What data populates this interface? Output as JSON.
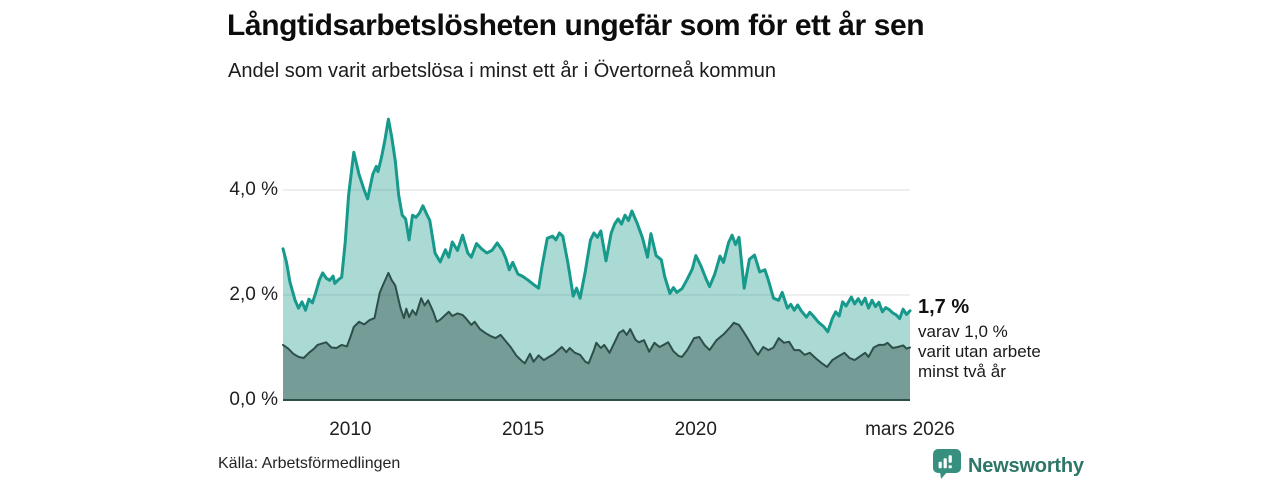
{
  "header": {
    "title": "Långtidsarbetslösheten ungefär som för ett år sen",
    "subtitle": "Andel som varit arbetslösa i minst ett år i Övertorneå kommun"
  },
  "footer": {
    "source": "Källa: Arbetsförmedlingen",
    "brand": "Newsworthy",
    "logo_icon": "bar-chart-speech-bubble",
    "brand_color": "#2d7668",
    "logo_bg_color": "#37907f"
  },
  "chart_data": {
    "type": "area",
    "title": "Långtidsarbetslösheten ungefär som för ett år sen",
    "subtitle": "Andel som varit arbetslösa i minst ett år i Övertorneå kommun",
    "unit": "%",
    "grid": "on",
    "legend_position": "annotation-right",
    "x_domain": [
      2008.05,
      2026.2
    ],
    "ylim": [
      0,
      5.6
    ],
    "colors": {
      "grid": "#dcdcdc",
      "axis": "#2e4f49"
    },
    "y_ticks": [
      {
        "value": 0,
        "label": "0,0 %"
      },
      {
        "value": 2,
        "label": "2,0 %"
      },
      {
        "value": 4,
        "label": "4,0 %"
      }
    ],
    "x_ticks": [
      {
        "value": 2010,
        "label": "2010"
      },
      {
        "value": 2015,
        "label": "2015"
      },
      {
        "value": 2020,
        "label": "2020"
      },
      {
        "value": 2026.2,
        "label": "mars 2026"
      }
    ],
    "annotation": {
      "value_label": "1,7 %",
      "detail_lines": [
        "varav 1,0 %",
        "varit utan arbete",
        "minst två år"
      ]
    },
    "series": [
      {
        "name": "Andel arbetslösa minst ett år",
        "line_color": "#17998b",
        "fill": "rgba(23,153,139,0.36)",
        "line_width": 3,
        "latest_value": 1.7,
        "points": [
          [
            2008.05,
            2.88
          ],
          [
            2008.15,
            2.62
          ],
          [
            2008.25,
            2.25
          ],
          [
            2008.4,
            1.9
          ],
          [
            2008.5,
            1.75
          ],
          [
            2008.6,
            1.87
          ],
          [
            2008.7,
            1.71
          ],
          [
            2008.8,
            1.92
          ],
          [
            2008.9,
            1.85
          ],
          [
            2009.0,
            2.05
          ],
          [
            2009.1,
            2.28
          ],
          [
            2009.2,
            2.42
          ],
          [
            2009.3,
            2.32
          ],
          [
            2009.4,
            2.28
          ],
          [
            2009.5,
            2.36
          ],
          [
            2009.55,
            2.22
          ],
          [
            2009.65,
            2.29
          ],
          [
            2009.75,
            2.34
          ],
          [
            2009.85,
            3.0
          ],
          [
            2009.95,
            3.9
          ],
          [
            2010.1,
            4.72
          ],
          [
            2010.25,
            4.3
          ],
          [
            2010.4,
            4.0
          ],
          [
            2010.5,
            3.83
          ],
          [
            2010.65,
            4.3
          ],
          [
            2010.75,
            4.45
          ],
          [
            2010.8,
            4.35
          ],
          [
            2010.9,
            4.62
          ],
          [
            2011.0,
            4.95
          ],
          [
            2011.1,
            5.35
          ],
          [
            2011.2,
            5.0
          ],
          [
            2011.3,
            4.55
          ],
          [
            2011.4,
            3.9
          ],
          [
            2011.5,
            3.52
          ],
          [
            2011.6,
            3.45
          ],
          [
            2011.7,
            3.05
          ],
          [
            2011.8,
            3.52
          ],
          [
            2011.9,
            3.48
          ],
          [
            2012.0,
            3.56
          ],
          [
            2012.1,
            3.7
          ],
          [
            2012.2,
            3.55
          ],
          [
            2012.3,
            3.42
          ],
          [
            2012.45,
            2.8
          ],
          [
            2012.6,
            2.63
          ],
          [
            2012.75,
            2.86
          ],
          [
            2012.85,
            2.72
          ],
          [
            2012.95,
            3.01
          ],
          [
            2013.1,
            2.85
          ],
          [
            2013.25,
            3.14
          ],
          [
            2013.4,
            2.8
          ],
          [
            2013.5,
            2.72
          ],
          [
            2013.65,
            2.98
          ],
          [
            2013.8,
            2.88
          ],
          [
            2013.95,
            2.8
          ],
          [
            2014.1,
            2.85
          ],
          [
            2014.25,
            2.99
          ],
          [
            2014.4,
            2.85
          ],
          [
            2014.5,
            2.7
          ],
          [
            2014.6,
            2.48
          ],
          [
            2014.7,
            2.62
          ],
          [
            2014.85,
            2.4
          ],
          [
            2015.0,
            2.35
          ],
          [
            2015.15,
            2.28
          ],
          [
            2015.3,
            2.2
          ],
          [
            2015.45,
            2.13
          ],
          [
            2015.55,
            2.55
          ],
          [
            2015.7,
            3.08
          ],
          [
            2015.85,
            3.12
          ],
          [
            2015.95,
            3.05
          ],
          [
            2016.05,
            3.18
          ],
          [
            2016.15,
            3.12
          ],
          [
            2016.3,
            2.6
          ],
          [
            2016.45,
            1.98
          ],
          [
            2016.55,
            2.13
          ],
          [
            2016.65,
            1.94
          ],
          [
            2016.8,
            2.45
          ],
          [
            2016.95,
            3.05
          ],
          [
            2017.05,
            3.18
          ],
          [
            2017.15,
            3.1
          ],
          [
            2017.25,
            3.22
          ],
          [
            2017.4,
            2.65
          ],
          [
            2017.55,
            3.18
          ],
          [
            2017.65,
            3.35
          ],
          [
            2017.75,
            3.45
          ],
          [
            2017.85,
            3.35
          ],
          [
            2017.95,
            3.52
          ],
          [
            2018.05,
            3.42
          ],
          [
            2018.15,
            3.6
          ],
          [
            2018.3,
            3.37
          ],
          [
            2018.45,
            3.1
          ],
          [
            2018.6,
            2.72
          ],
          [
            2018.7,
            3.17
          ],
          [
            2018.85,
            2.75
          ],
          [
            2019.0,
            2.67
          ],
          [
            2019.1,
            2.35
          ],
          [
            2019.25,
            2.03
          ],
          [
            2019.35,
            2.14
          ],
          [
            2019.45,
            2.05
          ],
          [
            2019.6,
            2.12
          ],
          [
            2019.75,
            2.3
          ],
          [
            2019.9,
            2.5
          ],
          [
            2020.0,
            2.75
          ],
          [
            2020.15,
            2.55
          ],
          [
            2020.3,
            2.3
          ],
          [
            2020.4,
            2.16
          ],
          [
            2020.55,
            2.4
          ],
          [
            2020.7,
            2.74
          ],
          [
            2020.8,
            2.62
          ],
          [
            2020.95,
            3.0
          ],
          [
            2021.05,
            3.14
          ],
          [
            2021.15,
            2.96
          ],
          [
            2021.25,
            3.1
          ],
          [
            2021.4,
            2.13
          ],
          [
            2021.55,
            2.68
          ],
          [
            2021.7,
            2.76
          ],
          [
            2021.85,
            2.44
          ],
          [
            2022.0,
            2.48
          ],
          [
            2022.1,
            2.28
          ],
          [
            2022.25,
            1.94
          ],
          [
            2022.4,
            1.9
          ],
          [
            2022.5,
            2.05
          ],
          [
            2022.65,
            1.75
          ],
          [
            2022.75,
            1.82
          ],
          [
            2022.85,
            1.71
          ],
          [
            2022.95,
            1.81
          ],
          [
            2023.05,
            1.7
          ],
          [
            2023.2,
            1.58
          ],
          [
            2023.3,
            1.67
          ],
          [
            2023.4,
            1.6
          ],
          [
            2023.55,
            1.48
          ],
          [
            2023.7,
            1.4
          ],
          [
            2023.82,
            1.3
          ],
          [
            2023.95,
            1.55
          ],
          [
            2024.05,
            1.68
          ],
          [
            2024.15,
            1.6
          ],
          [
            2024.25,
            1.87
          ],
          [
            2024.35,
            1.79
          ],
          [
            2024.5,
            1.96
          ],
          [
            2024.6,
            1.83
          ],
          [
            2024.7,
            1.93
          ],
          [
            2024.8,
            1.82
          ],
          [
            2024.9,
            1.94
          ],
          [
            2025.0,
            1.75
          ],
          [
            2025.1,
            1.9
          ],
          [
            2025.2,
            1.78
          ],
          [
            2025.3,
            1.86
          ],
          [
            2025.4,
            1.68
          ],
          [
            2025.5,
            1.76
          ],
          [
            2025.6,
            1.72
          ],
          [
            2025.7,
            1.66
          ],
          [
            2025.8,
            1.62
          ],
          [
            2025.9,
            1.55
          ],
          [
            2026.0,
            1.73
          ],
          [
            2026.1,
            1.63
          ],
          [
            2026.2,
            1.7
          ]
        ]
      },
      {
        "name": "varav arbetslösa minst två år",
        "line_color": "#2e4f49",
        "fill": "rgba(42,72,66,0.42)",
        "line_width": 2,
        "latest_value": 1.0,
        "points": [
          [
            2008.05,
            1.05
          ],
          [
            2008.2,
            0.98
          ],
          [
            2008.35,
            0.88
          ],
          [
            2008.5,
            0.82
          ],
          [
            2008.65,
            0.8
          ],
          [
            2008.8,
            0.9
          ],
          [
            2008.95,
            0.98
          ],
          [
            2009.05,
            1.05
          ],
          [
            2009.2,
            1.08
          ],
          [
            2009.3,
            1.1
          ],
          [
            2009.45,
            1.0
          ],
          [
            2009.6,
            0.99
          ],
          [
            2009.75,
            1.05
          ],
          [
            2009.9,
            1.02
          ],
          [
            2010.0,
            1.2
          ],
          [
            2010.1,
            1.39
          ],
          [
            2010.25,
            1.49
          ],
          [
            2010.4,
            1.44
          ],
          [
            2010.55,
            1.52
          ],
          [
            2010.7,
            1.56
          ],
          [
            2010.85,
            2.04
          ],
          [
            2010.95,
            2.2
          ],
          [
            2011.1,
            2.42
          ],
          [
            2011.2,
            2.28
          ],
          [
            2011.3,
            2.18
          ],
          [
            2011.45,
            1.75
          ],
          [
            2011.55,
            1.56
          ],
          [
            2011.62,
            1.74
          ],
          [
            2011.7,
            1.58
          ],
          [
            2011.8,
            1.71
          ],
          [
            2011.9,
            1.62
          ],
          [
            2012.05,
            1.94
          ],
          [
            2012.15,
            1.8
          ],
          [
            2012.25,
            1.9
          ],
          [
            2012.4,
            1.68
          ],
          [
            2012.5,
            1.49
          ],
          [
            2012.6,
            1.53
          ],
          [
            2012.75,
            1.62
          ],
          [
            2012.85,
            1.68
          ],
          [
            2012.95,
            1.6
          ],
          [
            2013.1,
            1.65
          ],
          [
            2013.25,
            1.62
          ],
          [
            2013.35,
            1.55
          ],
          [
            2013.5,
            1.43
          ],
          [
            2013.6,
            1.49
          ],
          [
            2013.75,
            1.35
          ],
          [
            2013.9,
            1.28
          ],
          [
            2014.05,
            1.22
          ],
          [
            2014.2,
            1.18
          ],
          [
            2014.35,
            1.24
          ],
          [
            2014.5,
            1.12
          ],
          [
            2014.65,
            1.0
          ],
          [
            2014.8,
            0.85
          ],
          [
            2014.95,
            0.75
          ],
          [
            2015.05,
            0.7
          ],
          [
            2015.2,
            0.88
          ],
          [
            2015.3,
            0.73
          ],
          [
            2015.45,
            0.85
          ],
          [
            2015.6,
            0.76
          ],
          [
            2015.75,
            0.82
          ],
          [
            2015.9,
            0.88
          ],
          [
            2016.05,
            0.97
          ],
          [
            2016.12,
            1.01
          ],
          [
            2016.25,
            0.91
          ],
          [
            2016.35,
            0.99
          ],
          [
            2016.5,
            0.9
          ],
          [
            2016.65,
            0.86
          ],
          [
            2016.8,
            0.73
          ],
          [
            2016.9,
            0.7
          ],
          [
            2017.05,
            0.95
          ],
          [
            2017.12,
            1.09
          ],
          [
            2017.25,
            0.99
          ],
          [
            2017.35,
            1.05
          ],
          [
            2017.5,
            0.9
          ],
          [
            2017.65,
            1.1
          ],
          [
            2017.78,
            1.28
          ],
          [
            2017.9,
            1.33
          ],
          [
            2018.0,
            1.24
          ],
          [
            2018.1,
            1.35
          ],
          [
            2018.25,
            1.15
          ],
          [
            2018.35,
            1.1
          ],
          [
            2018.5,
            1.14
          ],
          [
            2018.65,
            0.92
          ],
          [
            2018.8,
            1.09
          ],
          [
            2018.95,
            1.01
          ],
          [
            2019.1,
            1.06
          ],
          [
            2019.2,
            1.1
          ],
          [
            2019.35,
            0.93
          ],
          [
            2019.5,
            0.84
          ],
          [
            2019.6,
            0.82
          ],
          [
            2019.75,
            0.95
          ],
          [
            2019.95,
            1.18
          ],
          [
            2020.1,
            1.2
          ],
          [
            2020.25,
            1.05
          ],
          [
            2020.4,
            0.95
          ],
          [
            2020.6,
            1.14
          ],
          [
            2020.8,
            1.25
          ],
          [
            2021.0,
            1.39
          ],
          [
            2021.1,
            1.47
          ],
          [
            2021.25,
            1.43
          ],
          [
            2021.4,
            1.28
          ],
          [
            2021.55,
            1.12
          ],
          [
            2021.7,
            0.95
          ],
          [
            2021.8,
            0.86
          ],
          [
            2021.95,
            1.01
          ],
          [
            2022.1,
            0.95
          ],
          [
            2022.25,
            1.0
          ],
          [
            2022.4,
            1.18
          ],
          [
            2022.55,
            1.09
          ],
          [
            2022.7,
            1.11
          ],
          [
            2022.85,
            0.95
          ],
          [
            2023.0,
            0.95
          ],
          [
            2023.15,
            0.86
          ],
          [
            2023.3,
            0.9
          ],
          [
            2023.5,
            0.78
          ],
          [
            2023.65,
            0.7
          ],
          [
            2023.8,
            0.63
          ],
          [
            2023.95,
            0.76
          ],
          [
            2024.1,
            0.82
          ],
          [
            2024.3,
            0.9
          ],
          [
            2024.45,
            0.8
          ],
          [
            2024.6,
            0.76
          ],
          [
            2024.75,
            0.83
          ],
          [
            2024.9,
            0.9
          ],
          [
            2025.0,
            0.82
          ],
          [
            2025.15,
            1.0
          ],
          [
            2025.3,
            1.05
          ],
          [
            2025.45,
            1.05
          ],
          [
            2025.55,
            1.09
          ],
          [
            2025.7,
            0.99
          ],
          [
            2025.85,
            1.01
          ],
          [
            2026.0,
            1.04
          ],
          [
            2026.1,
            0.98
          ],
          [
            2026.2,
            1.0
          ]
        ]
      }
    ]
  }
}
